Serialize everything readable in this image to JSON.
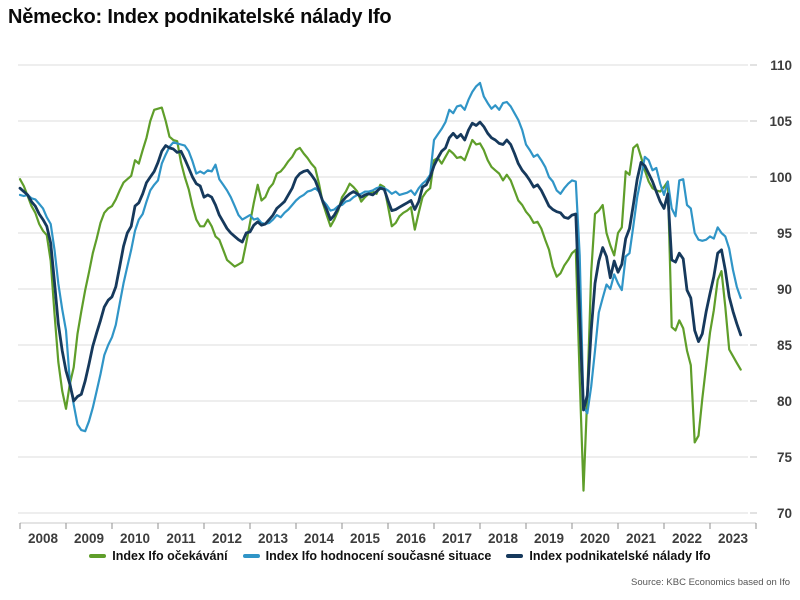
{
  "title": "Německo: Index podnikatelské nálady Ifo",
  "source": "Source: KBC Economics based on Ifo",
  "chart_data": {
    "type": "line",
    "frequency": "monthly",
    "x_start": "2008-01",
    "x_end": "2023-09",
    "x_tick_labels": [
      "2008",
      "2009",
      "2010",
      "2011",
      "2012",
      "2013",
      "2014",
      "2015",
      "2016",
      "2017",
      "2018",
      "2019",
      "2020",
      "2021",
      "2022",
      "2023"
    ],
    "y_ticks": [
      110,
      105,
      100,
      95,
      90,
      85,
      80,
      75,
      70
    ],
    "ylim": [
      70,
      110
    ],
    "y_axis_side": "right",
    "grid": "horizontal",
    "legend_position": "bottom",
    "series": [
      {
        "name": "Index Ifo očekávání",
        "color": "#5f9e2a",
        "width": 2.2,
        "values": [
          99.8,
          99.2,
          98.3,
          97.4,
          96.8,
          95.8,
          95.2,
          94.8,
          92.5,
          87.8,
          83.5,
          80.9,
          79.3,
          81.5,
          83.0,
          86.0,
          88.0,
          89.9,
          91.5,
          93.2,
          94.5,
          95.9,
          96.8,
          97.2,
          97.4,
          98.0,
          98.8,
          99.5,
          99.8,
          100.1,
          101.5,
          101.2,
          102.4,
          103.5,
          105.0,
          106.0,
          106.1,
          106.2,
          105.0,
          103.6,
          103.3,
          103.2,
          101.3,
          100.0,
          98.9,
          97.4,
          96.2,
          95.6,
          95.6,
          96.2,
          95.6,
          94.7,
          94.4,
          93.5,
          92.6,
          92.3,
          92.0,
          92.2,
          92.4,
          94.1,
          95.9,
          97.7,
          99.3,
          97.9,
          98.2,
          99.0,
          99.4,
          100.3,
          100.5,
          100.9,
          101.4,
          101.8,
          102.4,
          102.6,
          102.1,
          101.7,
          101.2,
          100.8,
          99.4,
          97.7,
          96.6,
          95.6,
          96.2,
          97.0,
          98.2,
          98.7,
          99.4,
          99.1,
          98.7,
          97.8,
          98.2,
          98.5,
          98.7,
          98.5,
          99.3,
          99.1,
          97.4,
          95.6,
          95.9,
          96.5,
          96.8,
          97.0,
          97.3,
          95.3,
          96.8,
          98.2,
          98.7,
          99.0,
          101.5,
          101.7,
          101.2,
          101.8,
          102.4,
          102.1,
          101.7,
          101.8,
          101.5,
          102.4,
          103.3,
          102.9,
          103.0,
          102.4,
          101.5,
          100.9,
          100.6,
          100.3,
          99.7,
          100.2,
          99.7,
          98.8,
          97.9,
          97.5,
          96.9,
          96.5,
          95.9,
          96.0,
          95.4,
          94.4,
          93.5,
          92.0,
          91.1,
          91.4,
          92.1,
          92.6,
          93.2,
          93.5,
          82.0,
          72.0,
          80.5,
          91.5,
          96.7,
          97.0,
          97.5,
          95.0,
          93.9,
          93.0,
          95.0,
          95.5,
          100.5,
          100.2,
          102.6,
          102.9,
          101.8,
          100.6,
          99.6,
          99.0,
          98.8,
          98.7,
          99.1,
          99.6,
          86.6,
          86.3,
          87.2,
          86.5,
          84.5,
          83.2,
          76.3,
          76.9,
          80.2,
          83.2,
          86.1,
          88.1,
          90.8,
          91.6,
          88.4,
          84.6,
          84.0,
          83.4,
          82.8
        ]
      },
      {
        "name": "Index Ifo hodnocení současné situace",
        "color": "#3095c7",
        "width": 2.2,
        "values": [
          98.4,
          98.3,
          98.4,
          98.1,
          98.0,
          97.6,
          97.2,
          96.4,
          95.8,
          93.5,
          90.5,
          88.2,
          86.3,
          81.8,
          79.7,
          77.9,
          77.4,
          77.3,
          78.2,
          79.4,
          80.9,
          82.4,
          84.1,
          85.0,
          85.7,
          86.8,
          88.7,
          90.5,
          92.0,
          93.5,
          95.2,
          96.2,
          96.7,
          97.8,
          98.8,
          99.3,
          99.7,
          101.2,
          102.0,
          102.7,
          103.1,
          103.0,
          102.9,
          102.8,
          102.3,
          101.4,
          100.3,
          100.5,
          100.3,
          100.6,
          100.5,
          101.1,
          99.8,
          99.3,
          98.8,
          98.2,
          97.4,
          96.6,
          96.2,
          96.4,
          96.6,
          96.2,
          96.3,
          95.9,
          95.8,
          95.9,
          96.2,
          96.6,
          96.4,
          96.8,
          97.1,
          97.5,
          97.9,
          98.2,
          98.4,
          98.7,
          98.8,
          99.0,
          98.7,
          97.9,
          97.5,
          97.0,
          97.1,
          97.4,
          97.5,
          97.8,
          97.9,
          98.2,
          98.4,
          98.5,
          98.7,
          98.7,
          98.8,
          99.0,
          99.1,
          99.0,
          98.8,
          98.5,
          98.7,
          98.4,
          98.5,
          98.6,
          98.8,
          98.4,
          99.0,
          99.4,
          99.7,
          100.2,
          103.3,
          103.8,
          104.3,
          104.9,
          106.0,
          105.7,
          106.3,
          106.4,
          106.0,
          106.9,
          107.6,
          108.1,
          108.4,
          107.2,
          106.6,
          106.1,
          106.4,
          106.0,
          106.6,
          106.7,
          106.3,
          105.7,
          105.1,
          104.2,
          102.9,
          102.4,
          101.8,
          102.0,
          101.5,
          100.9,
          100.0,
          99.6,
          98.8,
          98.5,
          99.0,
          99.4,
          99.7,
          99.6,
          93.0,
          79.5,
          78.9,
          81.3,
          84.5,
          87.9,
          89.2,
          90.4,
          90.0,
          91.3,
          90.5,
          89.9,
          92.9,
          93.2,
          95.6,
          98.2,
          99.9,
          101.8,
          101.5,
          100.6,
          100.8,
          99.4,
          98.4,
          99.6,
          97.2,
          96.5,
          99.7,
          99.8,
          97.5,
          97.2,
          95.0,
          94.4,
          94.3,
          94.4,
          94.7,
          94.5,
          95.5,
          95.0,
          94.7,
          93.6,
          91.7,
          90.2,
          89.2
        ]
      },
      {
        "name": "Index podnikatelské nálady Ifo",
        "color": "#16395c",
        "width": 2.8,
        "values": [
          99.0,
          98.7,
          98.4,
          97.8,
          97.4,
          96.7,
          96.2,
          95.6,
          94.1,
          90.6,
          86.9,
          84.5,
          82.7,
          81.5,
          80.0,
          80.4,
          80.6,
          81.8,
          83.3,
          84.9,
          86.1,
          87.2,
          88.4,
          89.0,
          89.3,
          90.2,
          92.0,
          93.8,
          95.0,
          95.6,
          97.4,
          97.7,
          98.5,
          99.5,
          100.0,
          100.5,
          101.3,
          102.3,
          102.8,
          102.6,
          102.5,
          102.2,
          102.3,
          101.6,
          100.8,
          100.0,
          99.4,
          99.2,
          98.2,
          98.4,
          98.2,
          97.5,
          96.6,
          96.0,
          95.4,
          95.0,
          94.7,
          94.4,
          94.2,
          95.0,
          95.1,
          95.7,
          96.0,
          95.7,
          95.8,
          96.2,
          96.6,
          97.2,
          97.5,
          97.8,
          98.4,
          99.0,
          99.9,
          100.3,
          100.5,
          100.6,
          100.2,
          99.7,
          98.8,
          97.8,
          97.1,
          96.2,
          96.6,
          97.2,
          97.8,
          98.2,
          98.5,
          98.7,
          98.5,
          98.2,
          98.4,
          98.5,
          98.4,
          98.7,
          99.0,
          98.9,
          97.9,
          97.0,
          97.1,
          97.3,
          97.5,
          97.7,
          97.9,
          97.1,
          97.8,
          99.1,
          99.3,
          100.0,
          101.0,
          101.7,
          102.3,
          102.6,
          103.5,
          103.9,
          103.5,
          103.8,
          103.3,
          104.2,
          104.8,
          104.6,
          104.9,
          104.5,
          103.9,
          103.5,
          103.3,
          103.0,
          102.9,
          103.3,
          102.9,
          102.1,
          101.2,
          100.6,
          100.2,
          99.7,
          99.1,
          99.3,
          98.8,
          98.1,
          97.4,
          97.1,
          96.9,
          96.8,
          96.4,
          96.3,
          96.6,
          96.7,
          87.5,
          79.2,
          80.5,
          86.3,
          90.5,
          92.5,
          93.7,
          92.9,
          91.0,
          92.5,
          91.5,
          92.2,
          94.5,
          95.4,
          97.5,
          99.8,
          101.3,
          101.0,
          100.3,
          99.6,
          98.7,
          97.8,
          97.2,
          98.5,
          92.6,
          92.4,
          93.2,
          92.7,
          89.9,
          89.2,
          86.3,
          85.3,
          86.0,
          88.0,
          89.6,
          91.1,
          93.2,
          93.5,
          91.7,
          89.3,
          88.0,
          86.9,
          85.9
        ]
      }
    ]
  }
}
